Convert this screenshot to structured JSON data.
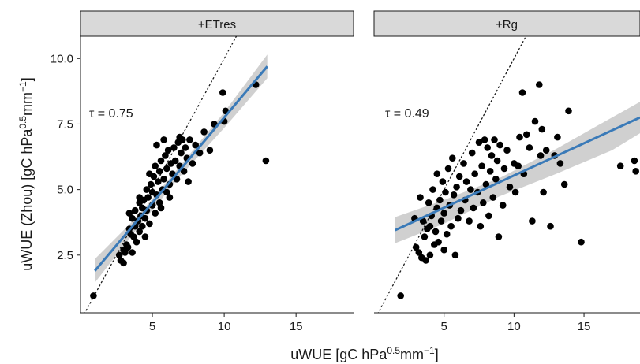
{
  "chart_data": {
    "type": "scatter",
    "facet_order": [
      "etres",
      "rg"
    ],
    "axes": {
      "x_title": {
        "main": "uWUE [gC hPa",
        "sup1": "0.5",
        "mid": "mm",
        "sup2": "−1",
        "end": "]"
      },
      "y_title": {
        "main": "uWUE (Zhou) [gC hPa",
        "sup1": "0.5",
        "mid": "mm",
        "sup2": "−1",
        "end": "]"
      },
      "xlim": [
        0,
        19
      ],
      "ylim": [
        0.3,
        10.85
      ],
      "x_ticks": [
        5,
        10,
        15
      ],
      "x_tick_labels": [
        "5",
        "10",
        "15"
      ],
      "y_ticks": [
        2.5,
        5.0,
        7.5,
        10.0
      ],
      "y_tick_labels": [
        "2.5",
        "5.0",
        "7.5",
        "10.0"
      ],
      "grid": false,
      "reference_line": "1:1 dotted"
    },
    "colors": {
      "points": "#000000",
      "fit_line": "#3a7ab8",
      "ribbon": "#c8c8c8",
      "strip": "#d9d9d9",
      "reference": "#1a1a1a"
    },
    "facets": {
      "etres": {
        "label": "+ETres",
        "tau": "τ = 0.75",
        "fit": {
          "x": [
            1.0,
            13.0
          ],
          "y": [
            1.9,
            9.7
          ]
        },
        "ribbon": {
          "x": [
            1.0,
            4.0,
            7.0,
            10.0,
            13.0
          ],
          "upper": [
            2.35,
            4.0,
            5.95,
            7.95,
            10.15
          ],
          "lower": [
            1.45,
            3.55,
            5.55,
            7.35,
            9.25
          ]
        },
        "points": [
          [
            0.9,
            0.95
          ],
          [
            2.7,
            2.5
          ],
          [
            2.8,
            2.3
          ],
          [
            3.0,
            2.7
          ],
          [
            3.0,
            2.2
          ],
          [
            3.1,
            2.6
          ],
          [
            3.2,
            2.9
          ],
          [
            3.3,
            2.8
          ],
          [
            3.4,
            3.5
          ],
          [
            3.5,
            3.3
          ],
          [
            3.6,
            2.6
          ],
          [
            3.6,
            3.9
          ],
          [
            3.7,
            3.2
          ],
          [
            3.8,
            4.2
          ],
          [
            3.8,
            3.6
          ],
          [
            3.9,
            3.0
          ],
          [
            4.0,
            3.8
          ],
          [
            4.1,
            4.5
          ],
          [
            4.1,
            3.4
          ],
          [
            4.2,
            4.0
          ],
          [
            4.3,
            4.3
          ],
          [
            4.3,
            3.6
          ],
          [
            4.4,
            4.6
          ],
          [
            4.5,
            3.9
          ],
          [
            4.6,
            5.0
          ],
          [
            4.6,
            4.2
          ],
          [
            4.7,
            4.7
          ],
          [
            4.8,
            3.7
          ],
          [
            4.9,
            5.2
          ],
          [
            5.0,
            4.4
          ],
          [
            5.0,
            4.9
          ],
          [
            5.1,
            5.5
          ],
          [
            5.2,
            4.1
          ],
          [
            5.2,
            5.9
          ],
          [
            5.3,
            4.8
          ],
          [
            5.4,
            5.3
          ],
          [
            5.5,
            4.5
          ],
          [
            5.5,
            5.7
          ],
          [
            5.6,
            6.1
          ],
          [
            5.7,
            5.0
          ],
          [
            5.8,
            5.4
          ],
          [
            5.9,
            6.3
          ],
          [
            6.0,
            4.9
          ],
          [
            6.0,
            5.8
          ],
          [
            6.1,
            6.5
          ],
          [
            6.2,
            5.2
          ],
          [
            6.3,
            6.0
          ],
          [
            6.4,
            5.6
          ],
          [
            6.5,
            6.6
          ],
          [
            6.6,
            6.1
          ],
          [
            6.7,
            5.4
          ],
          [
            6.8,
            6.8
          ],
          [
            6.9,
            5.9
          ],
          [
            7.0,
            6.4
          ],
          [
            7.1,
            6.9
          ],
          [
            7.2,
            5.7
          ],
          [
            7.3,
            6.6
          ],
          [
            7.4,
            6.2
          ],
          [
            7.6,
            6.9
          ],
          [
            7.8,
            6.0
          ],
          [
            8.0,
            6.7
          ],
          [
            8.3,
            6.4
          ],
          [
            8.6,
            7.2
          ],
          [
            9.0,
            6.5
          ],
          [
            9.3,
            7.5
          ],
          [
            9.9,
            8.7
          ],
          [
            10.0,
            7.6
          ],
          [
            10.1,
            8.0
          ],
          [
            12.2,
            9.0
          ],
          [
            12.9,
            6.1
          ],
          [
            4.1,
            4.7
          ],
          [
            5.3,
            6.7
          ],
          [
            6.2,
            4.7
          ],
          [
            3.4,
            4.1
          ],
          [
            4.8,
            5.6
          ],
          [
            5.8,
            6.9
          ],
          [
            7.5,
            5.3
          ],
          [
            4.5,
            3.2
          ],
          [
            6.9,
            7.0
          ],
          [
            5.6,
            4.3
          ]
        ]
      },
      "rg": {
        "label": "+Rg",
        "tau": "τ = 0.49",
        "fit": {
          "x": [
            1.5,
            19.0
          ],
          "y": [
            3.45,
            7.75
          ]
        },
        "ribbon": {
          "x": [
            1.5,
            5.0,
            9.0,
            13.0,
            17.0,
            19.0
          ],
          "upper": [
            3.95,
            4.6,
            5.45,
            6.55,
            7.75,
            8.35
          ],
          "lower": [
            2.95,
            3.7,
            4.75,
            5.6,
            6.5,
            7.15
          ]
        },
        "points": [
          [
            1.9,
            0.95
          ],
          [
            2.9,
            3.9
          ],
          [
            3.0,
            2.8
          ],
          [
            3.2,
            2.6
          ],
          [
            3.3,
            4.7
          ],
          [
            3.4,
            2.4
          ],
          [
            3.5,
            3.8
          ],
          [
            3.6,
            3.2
          ],
          [
            3.7,
            2.3
          ],
          [
            3.8,
            3.5
          ],
          [
            3.9,
            4.5
          ],
          [
            4.0,
            2.5
          ],
          [
            4.0,
            3.6
          ],
          [
            4.1,
            4.0
          ],
          [
            4.2,
            5.0
          ],
          [
            4.3,
            2.9
          ],
          [
            4.4,
            3.4
          ],
          [
            4.5,
            4.3
          ],
          [
            4.5,
            5.6
          ],
          [
            4.6,
            3.0
          ],
          [
            4.7,
            4.6
          ],
          [
            4.8,
            3.8
          ],
          [
            4.9,
            5.3
          ],
          [
            5.0,
            2.7
          ],
          [
            5.0,
            4.1
          ],
          [
            5.1,
            4.9
          ],
          [
            5.2,
            3.3
          ],
          [
            5.3,
            5.8
          ],
          [
            5.4,
            4.4
          ],
          [
            5.5,
            3.6
          ],
          [
            5.6,
            6.2
          ],
          [
            5.7,
            4.8
          ],
          [
            5.8,
            2.5
          ],
          [
            5.9,
            5.1
          ],
          [
            6.0,
            3.9
          ],
          [
            6.1,
            5.5
          ],
          [
            6.2,
            4.2
          ],
          [
            6.4,
            6.0
          ],
          [
            6.5,
            4.6
          ],
          [
            6.6,
            5.3
          ],
          [
            6.8,
            3.8
          ],
          [
            6.9,
            5.0
          ],
          [
            7.0,
            6.4
          ],
          [
            7.1,
            4.3
          ],
          [
            7.2,
            5.6
          ],
          [
            7.4,
            4.9
          ],
          [
            7.5,
            6.8
          ],
          [
            7.6,
            3.6
          ],
          [
            7.7,
            5.9
          ],
          [
            7.8,
            4.5
          ],
          [
            7.9,
            6.9
          ],
          [
            8.0,
            5.2
          ],
          [
            8.1,
            6.6
          ],
          [
            8.2,
            4.0
          ],
          [
            8.3,
            5.7
          ],
          [
            8.4,
            6.3
          ],
          [
            8.5,
            4.7
          ],
          [
            8.6,
            6.9
          ],
          [
            8.7,
            5.4
          ],
          [
            8.8,
            6.1
          ],
          [
            8.9,
            3.2
          ],
          [
            9.0,
            6.7
          ],
          [
            9.2,
            4.4
          ],
          [
            9.3,
            5.8
          ],
          [
            9.5,
            6.5
          ],
          [
            9.7,
            5.1
          ],
          [
            10.0,
            6.0
          ],
          [
            10.1,
            4.9
          ],
          [
            10.4,
            7.0
          ],
          [
            10.6,
            8.7
          ],
          [
            10.7,
            5.6
          ],
          [
            10.9,
            7.1
          ],
          [
            11.1,
            6.6
          ],
          [
            11.3,
            3.8
          ],
          [
            11.5,
            7.6
          ],
          [
            11.8,
            9.0
          ],
          [
            11.9,
            6.3
          ],
          [
            12.1,
            4.9
          ],
          [
            12.3,
            6.5
          ],
          [
            12.6,
            3.6
          ],
          [
            12.9,
            6.3
          ],
          [
            13.1,
            7.0
          ],
          [
            13.3,
            6.0
          ],
          [
            13.6,
            5.2
          ],
          [
            13.9,
            8.0
          ],
          [
            14.8,
            3.0
          ],
          [
            17.6,
            5.9
          ],
          [
            18.6,
            6.1
          ],
          [
            18.7,
            5.7
          ],
          [
            10.3,
            5.9
          ],
          [
            12.0,
            7.3
          ]
        ]
      }
    }
  }
}
